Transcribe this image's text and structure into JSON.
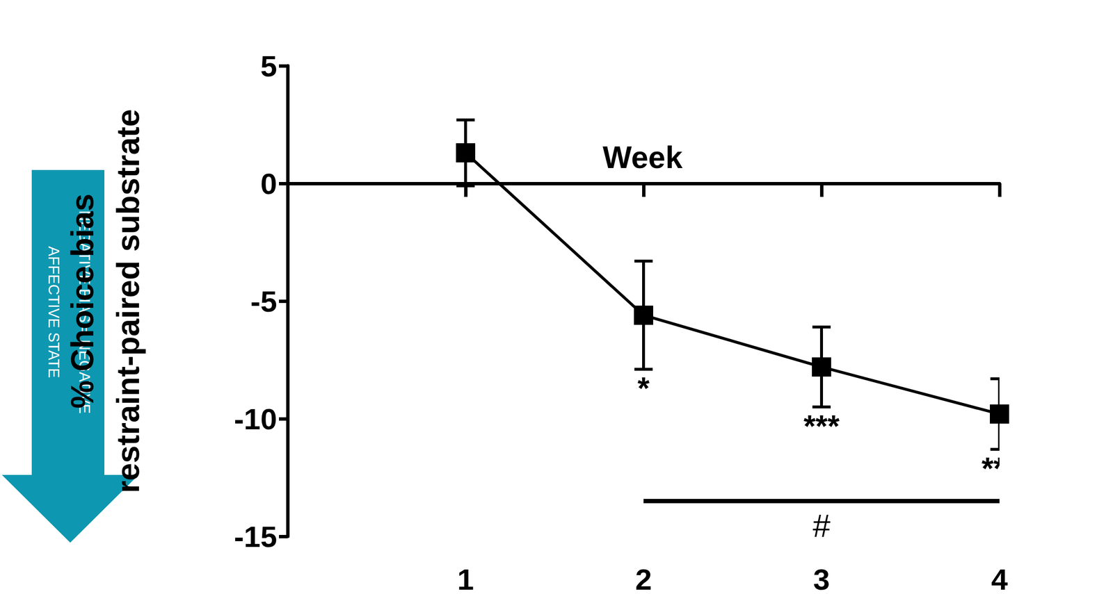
{
  "chart_data": {
    "type": "line",
    "x_label": "Week",
    "y_label": [
      "% Choice bias",
      "restraint-paired substrate"
    ],
    "x": [
      1,
      2,
      3,
      4
    ],
    "values": [
      1.3,
      -5.6,
      -7.8,
      -9.8
    ],
    "errors": [
      1.4,
      2.3,
      1.7,
      1.5
    ],
    "significance": [
      null,
      "*",
      "***",
      "***"
    ],
    "comparison": {
      "from": 2,
      "to": 4,
      "label": "#"
    },
    "xlim": [
      0,
      4
    ],
    "xticks": [
      1,
      2,
      3,
      4
    ],
    "ylim": [
      -15,
      5
    ],
    "yticks": [
      -15,
      -10,
      -5,
      0,
      5
    ],
    "color": "#000000",
    "marker": "square",
    "grid": false,
    "annotation": [
      "NEGATIVE BIAS = NEGATIVE",
      "AFFECTIVE STATE"
    ]
  }
}
